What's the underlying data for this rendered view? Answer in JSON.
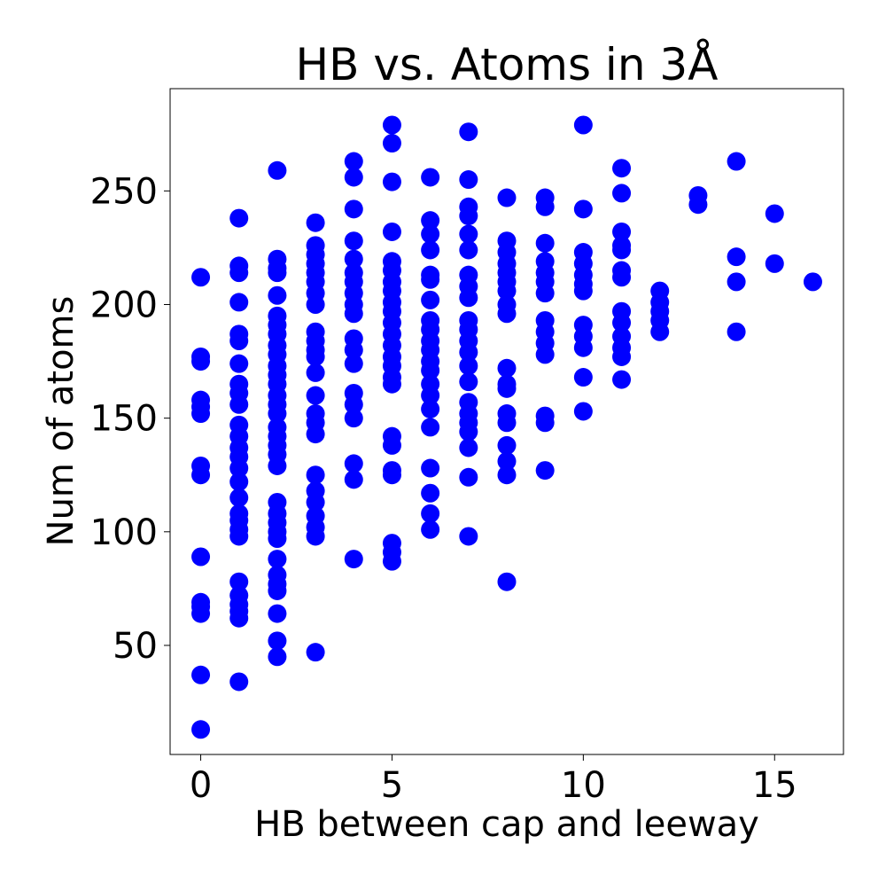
{
  "chart_data": {
    "type": "scatter",
    "title": "HB vs. Atoms in 3Å",
    "xlabel": "HB between cap and leeway",
    "ylabel": "Num of atoms",
    "xlim": [
      -0.8,
      16.8
    ],
    "ylim": [
      2,
      295
    ],
    "x_ticks": [
      0,
      5,
      10,
      15
    ],
    "y_ticks": [
      50,
      100,
      150,
      200,
      250
    ],
    "x_tick_labels": [
      "0",
      "5",
      "10",
      "15"
    ],
    "y_tick_labels": [
      "50",
      "100",
      "150",
      "200",
      "250"
    ],
    "grid": false,
    "marker_color": "#0000ff",
    "series": [
      {
        "points": [
          [
            0,
            212
          ],
          [
            0,
            177
          ],
          [
            0,
            175
          ],
          [
            0,
            158
          ],
          [
            0,
            155
          ],
          [
            0,
            152
          ],
          [
            0,
            129
          ],
          [
            0,
            125
          ],
          [
            0,
            89
          ],
          [
            0,
            69
          ],
          [
            0,
            67
          ],
          [
            0,
            64
          ],
          [
            0,
            37
          ],
          [
            0,
            13
          ],
          [
            1,
            238
          ],
          [
            1,
            217
          ],
          [
            1,
            214
          ],
          [
            1,
            201
          ],
          [
            1,
            187
          ],
          [
            1,
            184
          ],
          [
            1,
            174
          ],
          [
            1,
            165
          ],
          [
            1,
            161
          ],
          [
            1,
            156
          ],
          [
            1,
            147
          ],
          [
            1,
            142
          ],
          [
            1,
            137
          ],
          [
            1,
            133
          ],
          [
            1,
            128
          ],
          [
            1,
            122
          ],
          [
            1,
            115
          ],
          [
            1,
            108
          ],
          [
            1,
            105
          ],
          [
            1,
            101
          ],
          [
            1,
            98
          ],
          [
            1,
            78
          ],
          [
            1,
            72
          ],
          [
            1,
            68
          ],
          [
            1,
            65
          ],
          [
            1,
            62
          ],
          [
            1,
            34
          ],
          [
            2,
            259
          ],
          [
            2,
            220
          ],
          [
            2,
            216
          ],
          [
            2,
            214
          ],
          [
            2,
            204
          ],
          [
            2,
            195
          ],
          [
            2,
            191
          ],
          [
            2,
            187
          ],
          [
            2,
            182
          ],
          [
            2,
            178
          ],
          [
            2,
            173
          ],
          [
            2,
            169
          ],
          [
            2,
            165
          ],
          [
            2,
            160
          ],
          [
            2,
            156
          ],
          [
            2,
            152
          ],
          [
            2,
            146
          ],
          [
            2,
            142
          ],
          [
            2,
            138
          ],
          [
            2,
            134
          ],
          [
            2,
            129
          ],
          [
            2,
            113
          ],
          [
            2,
            108
          ],
          [
            2,
            104
          ],
          [
            2,
            100
          ],
          [
            2,
            97
          ],
          [
            2,
            88
          ],
          [
            2,
            81
          ],
          [
            2,
            77
          ],
          [
            2,
            74
          ],
          [
            2,
            64
          ],
          [
            2,
            52
          ],
          [
            2,
            45
          ],
          [
            3,
            236
          ],
          [
            3,
            226
          ],
          [
            3,
            222
          ],
          [
            3,
            218
          ],
          [
            3,
            214
          ],
          [
            3,
            210
          ],
          [
            3,
            205
          ],
          [
            3,
            200
          ],
          [
            3,
            188
          ],
          [
            3,
            184
          ],
          [
            3,
            180
          ],
          [
            3,
            177
          ],
          [
            3,
            170
          ],
          [
            3,
            160
          ],
          [
            3,
            152
          ],
          [
            3,
            148
          ],
          [
            3,
            143
          ],
          [
            3,
            125
          ],
          [
            3,
            118
          ],
          [
            3,
            113
          ],
          [
            3,
            107
          ],
          [
            3,
            102
          ],
          [
            3,
            98
          ],
          [
            3,
            47
          ],
          [
            4,
            263
          ],
          [
            4,
            256
          ],
          [
            4,
            242
          ],
          [
            4,
            228
          ],
          [
            4,
            220
          ],
          [
            4,
            214
          ],
          [
            4,
            210
          ],
          [
            4,
            205
          ],
          [
            4,
            200
          ],
          [
            4,
            196
          ],
          [
            4,
            185
          ],
          [
            4,
            180
          ],
          [
            4,
            174
          ],
          [
            4,
            161
          ],
          [
            4,
            156
          ],
          [
            4,
            150
          ],
          [
            4,
            130
          ],
          [
            4,
            123
          ],
          [
            4,
            88
          ],
          [
            5,
            279
          ],
          [
            5,
            271
          ],
          [
            5,
            254
          ],
          [
            5,
            232
          ],
          [
            5,
            219
          ],
          [
            5,
            215
          ],
          [
            5,
            210
          ],
          [
            5,
            206
          ],
          [
            5,
            201
          ],
          [
            5,
            197
          ],
          [
            5,
            192
          ],
          [
            5,
            187
          ],
          [
            5,
            182
          ],
          [
            5,
            177
          ],
          [
            5,
            173
          ],
          [
            5,
            168
          ],
          [
            5,
            165
          ],
          [
            5,
            142
          ],
          [
            5,
            138
          ],
          [
            5,
            127
          ],
          [
            5,
            125
          ],
          [
            5,
            95
          ],
          [
            5,
            91
          ],
          [
            5,
            87
          ],
          [
            6,
            256
          ],
          [
            6,
            237
          ],
          [
            6,
            231
          ],
          [
            6,
            224
          ],
          [
            6,
            213
          ],
          [
            6,
            211
          ],
          [
            6,
            202
          ],
          [
            6,
            193
          ],
          [
            6,
            189
          ],
          [
            6,
            184
          ],
          [
            6,
            180
          ],
          [
            6,
            175
          ],
          [
            6,
            171
          ],
          [
            6,
            165
          ],
          [
            6,
            160
          ],
          [
            6,
            154
          ],
          [
            6,
            146
          ],
          [
            6,
            128
          ],
          [
            6,
            117
          ],
          [
            6,
            108
          ],
          [
            6,
            101
          ],
          [
            7,
            276
          ],
          [
            7,
            255
          ],
          [
            7,
            243
          ],
          [
            7,
            239
          ],
          [
            7,
            231
          ],
          [
            7,
            224
          ],
          [
            7,
            213
          ],
          [
            7,
            208
          ],
          [
            7,
            203
          ],
          [
            7,
            193
          ],
          [
            7,
            189
          ],
          [
            7,
            184
          ],
          [
            7,
            179
          ],
          [
            7,
            173
          ],
          [
            7,
            166
          ],
          [
            7,
            157
          ],
          [
            7,
            152
          ],
          [
            7,
            148
          ],
          [
            7,
            144
          ],
          [
            7,
            137
          ],
          [
            7,
            124
          ],
          [
            7,
            98
          ],
          [
            8,
            247
          ],
          [
            8,
            228
          ],
          [
            8,
            223
          ],
          [
            8,
            218
          ],
          [
            8,
            214
          ],
          [
            8,
            210
          ],
          [
            8,
            206
          ],
          [
            8,
            200
          ],
          [
            8,
            196
          ],
          [
            8,
            172
          ],
          [
            8,
            165
          ],
          [
            8,
            163
          ],
          [
            8,
            152
          ],
          [
            8,
            148
          ],
          [
            8,
            138
          ],
          [
            8,
            131
          ],
          [
            8,
            125
          ],
          [
            8,
            78
          ],
          [
            9,
            247
          ],
          [
            9,
            243
          ],
          [
            9,
            227
          ],
          [
            9,
            219
          ],
          [
            9,
            214
          ],
          [
            9,
            210
          ],
          [
            9,
            205
          ],
          [
            9,
            193
          ],
          [
            9,
            188
          ],
          [
            9,
            183
          ],
          [
            9,
            178
          ],
          [
            9,
            151
          ],
          [
            9,
            148
          ],
          [
            9,
            127
          ],
          [
            10,
            279
          ],
          [
            10,
            242
          ],
          [
            10,
            223
          ],
          [
            10,
            218
          ],
          [
            10,
            213
          ],
          [
            10,
            209
          ],
          [
            10,
            206
          ],
          [
            10,
            191
          ],
          [
            10,
            186
          ],
          [
            10,
            181
          ],
          [
            10,
            168
          ],
          [
            10,
            153
          ],
          [
            11,
            260
          ],
          [
            11,
            249
          ],
          [
            11,
            232
          ],
          [
            11,
            226
          ],
          [
            11,
            224
          ],
          [
            11,
            215
          ],
          [
            11,
            212
          ],
          [
            11,
            197
          ],
          [
            11,
            192
          ],
          [
            11,
            186
          ],
          [
            11,
            181
          ],
          [
            11,
            177
          ],
          [
            11,
            167
          ],
          [
            12,
            206
          ],
          [
            12,
            201
          ],
          [
            12,
            197
          ],
          [
            12,
            193
          ],
          [
            12,
            188
          ],
          [
            13,
            248
          ],
          [
            13,
            244
          ],
          [
            14,
            263
          ],
          [
            14,
            221
          ],
          [
            14,
            210
          ],
          [
            14,
            188
          ],
          [
            15,
            240
          ],
          [
            15,
            218
          ],
          [
            16,
            210
          ]
        ]
      }
    ]
  }
}
